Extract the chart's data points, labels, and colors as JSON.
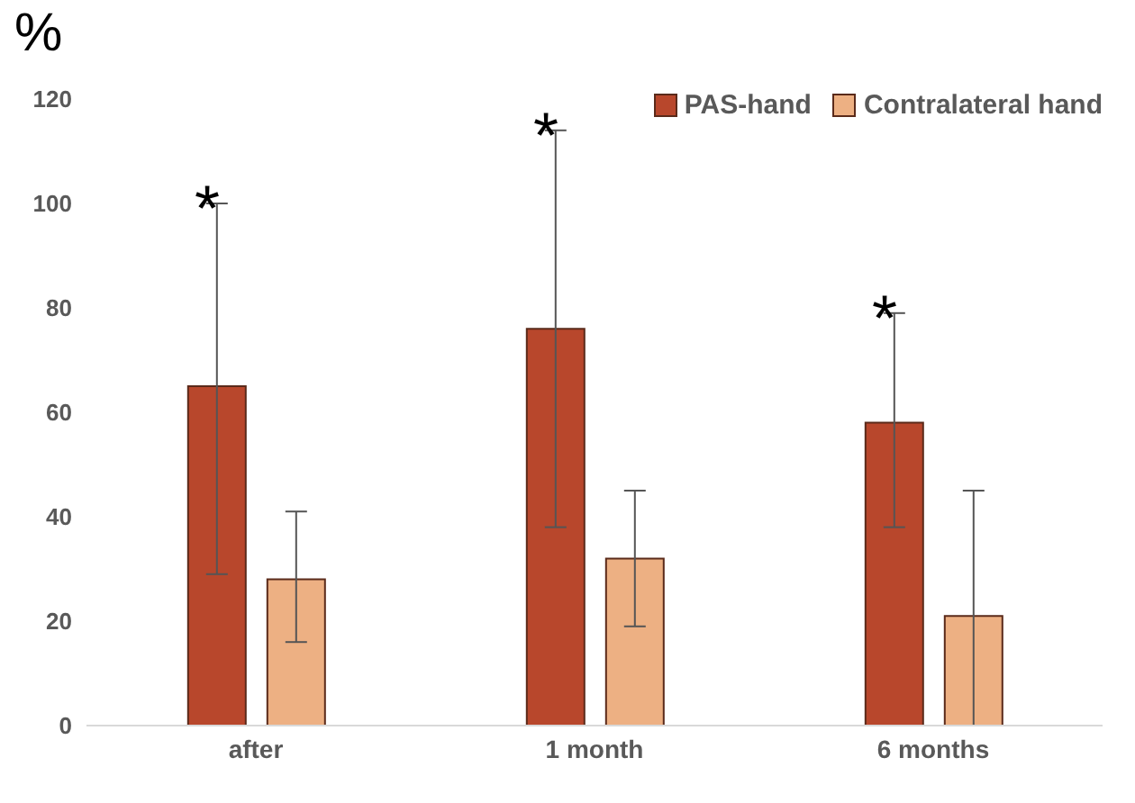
{
  "chart_data": {
    "type": "bar",
    "ylabel": "%",
    "categories": [
      "after",
      "1 month",
      "6 months"
    ],
    "series": [
      {
        "name": "PAS-hand",
        "color": "#b8472c",
        "values": [
          65,
          76,
          58
        ],
        "errors": [
          [
            29,
            100
          ],
          [
            38,
            114
          ],
          [
            38,
            79
          ]
        ]
      },
      {
        "name": "Contralateral hand",
        "color": "#edb083",
        "values": [
          28,
          32,
          21
        ],
        "errors": [
          [
            16,
            41
          ],
          [
            19,
            45
          ],
          [
            0,
            45
          ]
        ]
      }
    ],
    "ylim": [
      0,
      120
    ],
    "yticks": [
      0,
      20,
      40,
      60,
      80,
      100,
      120
    ],
    "grid": false,
    "legend": "top right",
    "annotations": [
      "*",
      "*",
      "*"
    ]
  }
}
